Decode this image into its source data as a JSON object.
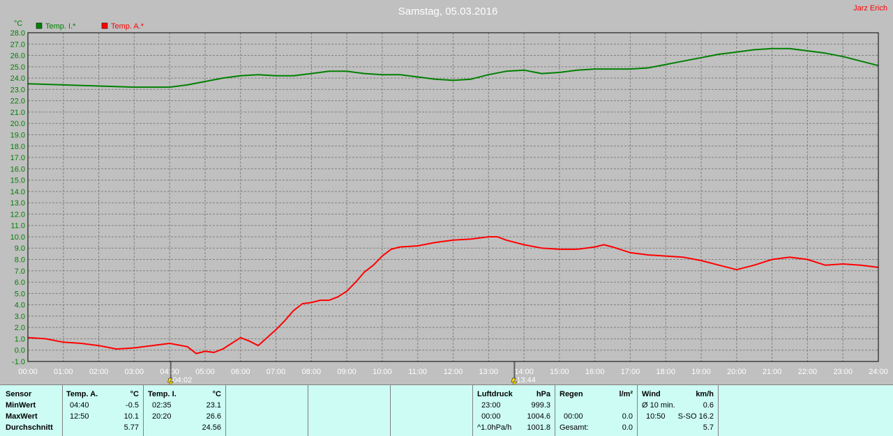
{
  "author": "Jarz Erich",
  "colors": {
    "outdoor": "#ff0000",
    "indoor": "#008000",
    "axis_text": "#008000"
  },
  "chart_data": {
    "type": "line",
    "title": "Samstag, 05.03.2016",
    "ylabel": "°C",
    "ylim": [
      -1.0,
      28.0
    ],
    "y_ticks": [
      "-1.0",
      "0.0",
      "1.0",
      "2.0",
      "3.0",
      "4.0",
      "5.0",
      "6.0",
      "7.0",
      "8.0",
      "9.0",
      "10.0",
      "11.0",
      "12.0",
      "13.0",
      "14.0",
      "15.0",
      "16.0",
      "17.0",
      "18.0",
      "19.0",
      "20.0",
      "21.0",
      "22.0",
      "23.0",
      "24.0",
      "25.0",
      "26.0",
      "27.0",
      "28.0"
    ],
    "x_ticks": [
      "00:00",
      "01:00",
      "02:00",
      "03:00",
      "04:00",
      "05:00",
      "06:00",
      "07:00",
      "08:00",
      "09:00",
      "10:00",
      "11:00",
      "12:00",
      "13:00",
      "14:00",
      "15:00",
      "16:00",
      "17:00",
      "18:00",
      "19:00",
      "20:00",
      "21:00",
      "22:00",
      "23:00",
      "24:00"
    ],
    "grid": true,
    "legend": "top-left",
    "markers": [
      {
        "label": "04:02",
        "hour": 4.03
      },
      {
        "label": "13:44",
        "hour": 13.73
      }
    ],
    "series": [
      {
        "name": "Temp. I.*",
        "color": "#008000",
        "x": [
          0,
          1,
          2,
          3,
          3.5,
          4,
          4.5,
          5,
          5.5,
          6,
          6.5,
          7,
          7.5,
          8,
          8.5,
          9,
          9.5,
          10,
          10.5,
          11,
          11.5,
          12,
          12.5,
          13,
          13.5,
          14,
          14.5,
          15,
          15.5,
          16,
          16.5,
          17,
          17.5,
          18,
          18.5,
          19,
          19.5,
          20,
          20.5,
          21,
          21.5,
          22,
          22.5,
          23,
          23.5,
          24
        ],
        "y": [
          23.5,
          23.4,
          23.3,
          23.2,
          23.2,
          23.2,
          23.4,
          23.7,
          24.0,
          24.2,
          24.3,
          24.2,
          24.2,
          24.4,
          24.6,
          24.6,
          24.4,
          24.3,
          24.3,
          24.1,
          23.9,
          23.8,
          23.9,
          24.3,
          24.6,
          24.7,
          24.4,
          24.5,
          24.7,
          24.8,
          24.8,
          24.8,
          24.9,
          25.2,
          25.5,
          25.8,
          26.1,
          26.3,
          26.5,
          26.6,
          26.6,
          26.4,
          26.2,
          25.9,
          25.5,
          25.1
        ]
      },
      {
        "name": "Temp. A.*",
        "color": "#ff0000",
        "x": [
          0,
          0.5,
          1,
          1.5,
          2,
          2.5,
          3,
          3.5,
          4,
          4.5,
          4.75,
          5,
          5.25,
          5.5,
          6,
          6.25,
          6.5,
          7,
          7.25,
          7.5,
          7.75,
          8,
          8.25,
          8.5,
          8.75,
          9,
          9.25,
          9.5,
          9.75,
          10,
          10.25,
          10.5,
          11,
          11.5,
          12,
          12.5,
          13,
          13.25,
          13.5,
          14,
          14.5,
          15,
          15.5,
          16,
          16.25,
          16.5,
          17,
          17.5,
          18,
          18.5,
          19,
          19.5,
          20,
          20.5,
          21,
          21.5,
          22,
          22.5,
          23,
          23.5,
          24
        ],
        "y": [
          1.1,
          1.0,
          0.7,
          0.6,
          0.4,
          0.1,
          0.2,
          0.4,
          0.6,
          0.3,
          -0.3,
          -0.1,
          -0.2,
          0.1,
          1.1,
          0.8,
          0.4,
          1.8,
          2.6,
          3.5,
          4.1,
          4.2,
          4.4,
          4.4,
          4.7,
          5.2,
          6.0,
          6.9,
          7.5,
          8.3,
          8.9,
          9.1,
          9.2,
          9.5,
          9.7,
          9.8,
          10.0,
          10.0,
          9.7,
          9.3,
          9.0,
          8.9,
          8.9,
          9.1,
          9.3,
          9.1,
          8.6,
          8.4,
          8.3,
          8.2,
          7.9,
          7.5,
          7.1,
          7.5,
          8.0,
          8.2,
          8.0,
          7.5,
          7.6,
          7.5,
          7.3
        ]
      }
    ]
  },
  "stats": {
    "sensor": {
      "header": "Sensor",
      "rows": [
        "MinWert",
        "MaxWert",
        "Durchschnitt"
      ]
    },
    "temp_a": {
      "header": "Temp. A.",
      "unit": "°C",
      "rows": [
        {
          "time": "04:40",
          "value": "-0.5"
        },
        {
          "time": "12:50",
          "value": "10.1"
        },
        {
          "time": "",
          "value": "5.77"
        }
      ]
    },
    "temp_i": {
      "header": "Temp. I.",
      "unit": "°C",
      "rows": [
        {
          "time": "02:35",
          "value": "23.1"
        },
        {
          "time": "20:20",
          "value": "26.6"
        },
        {
          "time": "",
          "value": "24.56"
        }
      ]
    },
    "pressure": {
      "header": "Luftdruck",
      "unit": "hPa",
      "rows": [
        {
          "time": "23:00",
          "value": "999.3"
        },
        {
          "time": "00:00",
          "value": "1004.6"
        },
        {
          "time": "^1.0hPa/h",
          "value": "1001.8"
        }
      ]
    },
    "rain": {
      "header": "Regen",
      "unit": "l/m²",
      "rows": [
        {
          "time": "",
          "value": ""
        },
        {
          "time": "00:00",
          "value": "0.0"
        },
        {
          "time": "Gesamt:",
          "value": "0.0"
        }
      ]
    },
    "wind": {
      "header": "Wind",
      "unit": "km/h",
      "rows": [
        {
          "time": "Ø 10 min.",
          "value": "0.6"
        },
        {
          "time": "10:50",
          "value": "S-SO 16.2"
        },
        {
          "time": "",
          "value": "5.7"
        }
      ]
    }
  }
}
